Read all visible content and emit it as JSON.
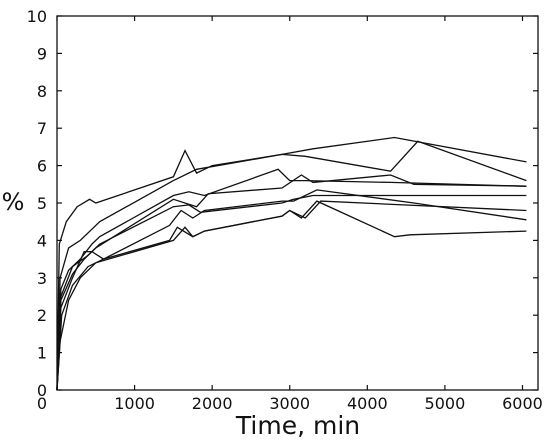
{
  "chart_data": {
    "type": "line",
    "title": "",
    "xlabel": "Time, min",
    "ylabel": "%",
    "xlim": [
      0,
      6200
    ],
    "ylim": [
      0,
      10
    ],
    "x_ticks": [
      0,
      1000,
      2000,
      3000,
      4000,
      5000,
      6000
    ],
    "y_ticks": [
      0,
      1,
      2,
      3,
      4,
      5,
      6,
      7,
      8,
      9,
      10
    ],
    "grid": false,
    "legend": "none",
    "line_color": "#111111",
    "series": [
      {
        "x": [
          0,
          30,
          120,
          260,
          420,
          500,
          1500,
          1650,
          1800,
          2000,
          2900,
          3200,
          4300,
          4650,
          6050
        ],
        "y": [
          0,
          3.9,
          4.5,
          4.9,
          5.1,
          5.0,
          5.7,
          6.4,
          5.8,
          6.0,
          6.3,
          6.25,
          5.85,
          6.65,
          5.6
        ]
      },
      {
        "x": [
          0,
          40,
          150,
          300,
          450,
          550,
          1500,
          1800,
          2900,
          3300,
          4350,
          6050
        ],
        "y": [
          0,
          3.0,
          3.8,
          4.0,
          4.3,
          4.5,
          5.6,
          5.9,
          6.3,
          6.45,
          6.75,
          6.1
        ]
      },
      {
        "x": [
          0,
          50,
          150,
          300,
          450,
          550,
          1500,
          1700,
          1900,
          2850,
          3000,
          3200,
          4300,
          6050
        ],
        "y": [
          0,
          2.7,
          3.2,
          3.5,
          3.9,
          4.1,
          5.2,
          5.3,
          5.2,
          5.9,
          5.6,
          5.6,
          5.55,
          5.45
        ]
      },
      {
        "x": [
          0,
          50,
          200,
          400,
          500,
          1500,
          1800,
          1950,
          2900,
          3150,
          3300,
          4300,
          4600,
          6050
        ],
        "y": [
          0,
          2.5,
          3.3,
          3.6,
          3.8,
          5.1,
          4.9,
          5.25,
          5.4,
          5.75,
          5.55,
          5.75,
          5.5,
          5.45
        ]
      },
      {
        "x": [
          0,
          50,
          200,
          350,
          450,
          550,
          1500,
          1700,
          1850,
          2900,
          3050,
          3300,
          6050
        ],
        "y": [
          0,
          2.4,
          3.1,
          3.5,
          3.7,
          3.9,
          4.9,
          4.95,
          4.75,
          5.0,
          5.1,
          5.2,
          5.2
        ]
      },
      {
        "x": [
          0,
          50,
          200,
          350,
          450,
          600,
          1450,
          1600,
          1750,
          1900,
          2900,
          3050,
          3350,
          4600,
          6050
        ],
        "y": [
          0,
          2.2,
          3.0,
          3.7,
          3.7,
          3.5,
          4.4,
          4.8,
          4.6,
          4.8,
          5.05,
          5.05,
          5.35,
          5.0,
          4.55
        ]
      },
      {
        "x": [
          0,
          60,
          200,
          400,
          600,
          1450,
          1550,
          1750,
          1900,
          2900,
          3000,
          3150,
          3350,
          4350,
          4550,
          6050
        ],
        "y": [
          0,
          2.0,
          2.8,
          3.3,
          3.5,
          4.0,
          4.35,
          4.1,
          4.25,
          4.65,
          4.8,
          4.6,
          5.05,
          4.1,
          4.15,
          4.25
        ]
      },
      {
        "x": [
          0,
          40,
          150,
          300,
          500,
          1500,
          1650,
          1750,
          1900,
          2900,
          3000,
          3200,
          3400,
          6050
        ],
        "y": [
          0,
          1.3,
          2.4,
          3.0,
          3.4,
          4.0,
          4.35,
          4.1,
          4.25,
          4.65,
          4.8,
          4.6,
          5.05,
          4.8
        ]
      }
    ]
  }
}
